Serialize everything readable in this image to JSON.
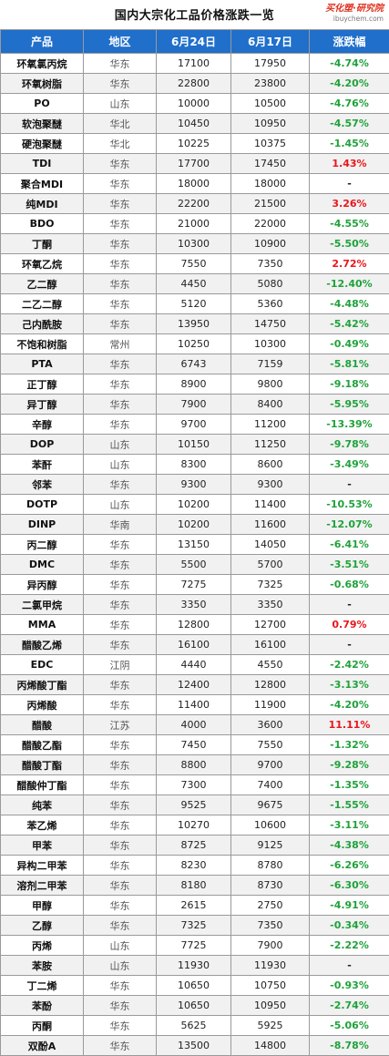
{
  "title": "国内大宗化工品价格涨跌一览",
  "logo": {
    "brand": "买化塑·研究院",
    "site": "ibuychem.com"
  },
  "colors": {
    "header_bg": "#1f6fcb",
    "up": "#e8161c",
    "down": "#1fa23a"
  },
  "columns": [
    "产品",
    "地区",
    "6月24日",
    "6月17日",
    "涨跌幅"
  ],
  "rows": [
    {
      "name": "环氧氯丙烷",
      "region": "华东",
      "d1": "17100",
      "d2": "17950",
      "change": "-4.74%",
      "dir": "down"
    },
    {
      "name": "环氧树脂",
      "region": "华东",
      "d1": "22800",
      "d2": "23800",
      "change": "-4.20%",
      "dir": "down"
    },
    {
      "name": "PO",
      "region": "山东",
      "d1": "10000",
      "d2": "10500",
      "change": "-4.76%",
      "dir": "down"
    },
    {
      "name": "软泡聚醚",
      "region": "华北",
      "d1": "10450",
      "d2": "10950",
      "change": "-4.57%",
      "dir": "down"
    },
    {
      "name": "硬泡聚醚",
      "region": "华北",
      "d1": "10225",
      "d2": "10375",
      "change": "-1.45%",
      "dir": "down"
    },
    {
      "name": "TDI",
      "region": "华东",
      "d1": "17700",
      "d2": "17450",
      "change": "1.43%",
      "dir": "up"
    },
    {
      "name": "聚合MDI",
      "region": "华东",
      "d1": "18000",
      "d2": "18000",
      "change": "-",
      "dir": "flat"
    },
    {
      "name": "纯MDI",
      "region": "华东",
      "d1": "22200",
      "d2": "21500",
      "change": "3.26%",
      "dir": "up"
    },
    {
      "name": "BDO",
      "region": "华东",
      "d1": "21000",
      "d2": "22000",
      "change": "-4.55%",
      "dir": "down"
    },
    {
      "name": "丁酮",
      "region": "华东",
      "d1": "10300",
      "d2": "10900",
      "change": "-5.50%",
      "dir": "down"
    },
    {
      "name": "环氧乙烷",
      "region": "华东",
      "d1": "7550",
      "d2": "7350",
      "change": "2.72%",
      "dir": "up"
    },
    {
      "name": "乙二醇",
      "region": "华东",
      "d1": "4450",
      "d2": "5080",
      "change": "-12.40%",
      "dir": "down"
    },
    {
      "name": "二乙二醇",
      "region": "华东",
      "d1": "5120",
      "d2": "5360",
      "change": "-4.48%",
      "dir": "down"
    },
    {
      "name": "己内酰胺",
      "region": "华东",
      "d1": "13950",
      "d2": "14750",
      "change": "-5.42%",
      "dir": "down"
    },
    {
      "name": "不饱和树脂",
      "region": "常州",
      "d1": "10250",
      "d2": "10300",
      "change": "-0.49%",
      "dir": "down"
    },
    {
      "name": "PTA",
      "region": "华东",
      "d1": "6743",
      "d2": "7159",
      "change": "-5.81%",
      "dir": "down"
    },
    {
      "name": "正丁醇",
      "region": "华东",
      "d1": "8900",
      "d2": "9800",
      "change": "-9.18%",
      "dir": "down"
    },
    {
      "name": "异丁醇",
      "region": "华东",
      "d1": "7900",
      "d2": "8400",
      "change": "-5.95%",
      "dir": "down"
    },
    {
      "name": "辛醇",
      "region": "华东",
      "d1": "9700",
      "d2": "11200",
      "change": "-13.39%",
      "dir": "down"
    },
    {
      "name": "DOP",
      "region": "山东",
      "d1": "10150",
      "d2": "11250",
      "change": "-9.78%",
      "dir": "down"
    },
    {
      "name": "苯酐",
      "region": "山东",
      "d1": "8300",
      "d2": "8600",
      "change": "-3.49%",
      "dir": "down"
    },
    {
      "name": "邻苯",
      "region": "华东",
      "d1": "9300",
      "d2": "9300",
      "change": "-",
      "dir": "flat"
    },
    {
      "name": "DOTP",
      "region": "山东",
      "d1": "10200",
      "d2": "11400",
      "change": "-10.53%",
      "dir": "down"
    },
    {
      "name": "DINP",
      "region": "华南",
      "d1": "10200",
      "d2": "11600",
      "change": "-12.07%",
      "dir": "down"
    },
    {
      "name": "丙二醇",
      "region": "华东",
      "d1": "13150",
      "d2": "14050",
      "change": "-6.41%",
      "dir": "down"
    },
    {
      "name": "DMC",
      "region": "华东",
      "d1": "5500",
      "d2": "5700",
      "change": "-3.51%",
      "dir": "down"
    },
    {
      "name": "异丙醇",
      "region": "华东",
      "d1": "7275",
      "d2": "7325",
      "change": "-0.68%",
      "dir": "down"
    },
    {
      "name": "二氯甲烷",
      "region": "华东",
      "d1": "3350",
      "d2": "3350",
      "change": "-",
      "dir": "flat"
    },
    {
      "name": "MMA",
      "region": "华东",
      "d1": "12800",
      "d2": "12700",
      "change": "0.79%",
      "dir": "up"
    },
    {
      "name": "醋酸乙烯",
      "region": "华东",
      "d1": "16100",
      "d2": "16100",
      "change": "-",
      "dir": "flat"
    },
    {
      "name": "EDC",
      "region": "江阴",
      "d1": "4440",
      "d2": "4550",
      "change": "-2.42%",
      "dir": "down"
    },
    {
      "name": "丙烯酸丁酯",
      "region": "华东",
      "d1": "12400",
      "d2": "12800",
      "change": "-3.13%",
      "dir": "down"
    },
    {
      "name": "丙烯酸",
      "region": "华东",
      "d1": "11400",
      "d2": "11900",
      "change": "-4.20%",
      "dir": "down"
    },
    {
      "name": "醋酸",
      "region": "江苏",
      "d1": "4000",
      "d2": "3600",
      "change": "11.11%",
      "dir": "up"
    },
    {
      "name": "醋酸乙酯",
      "region": "华东",
      "d1": "7450",
      "d2": "7550",
      "change": "-1.32%",
      "dir": "down"
    },
    {
      "name": "醋酸丁酯",
      "region": "华东",
      "d1": "8800",
      "d2": "9700",
      "change": "-9.28%",
      "dir": "down"
    },
    {
      "name": "醋酸仲丁酯",
      "region": "华东",
      "d1": "7300",
      "d2": "7400",
      "change": "-1.35%",
      "dir": "down"
    },
    {
      "name": "纯苯",
      "region": "华东",
      "d1": "9525",
      "d2": "9675",
      "change": "-1.55%",
      "dir": "down"
    },
    {
      "name": "苯乙烯",
      "region": "华东",
      "d1": "10270",
      "d2": "10600",
      "change": "-3.11%",
      "dir": "down"
    },
    {
      "name": "甲苯",
      "region": "华东",
      "d1": "8725",
      "d2": "9125",
      "change": "-4.38%",
      "dir": "down"
    },
    {
      "name": "异构二甲苯",
      "region": "华东",
      "d1": "8230",
      "d2": "8780",
      "change": "-6.26%",
      "dir": "down"
    },
    {
      "name": "溶剂二甲苯",
      "region": "华东",
      "d1": "8180",
      "d2": "8730",
      "change": "-6.30%",
      "dir": "down"
    },
    {
      "name": "甲醇",
      "region": "华东",
      "d1": "2615",
      "d2": "2750",
      "change": "-4.91%",
      "dir": "down"
    },
    {
      "name": "乙醇",
      "region": "华东",
      "d1": "7325",
      "d2": "7350",
      "change": "-0.34%",
      "dir": "down"
    },
    {
      "name": "丙烯",
      "region": "山东",
      "d1": "7725",
      "d2": "7900",
      "change": "-2.22%",
      "dir": "down"
    },
    {
      "name": "苯胺",
      "region": "山东",
      "d1": "11930",
      "d2": "11930",
      "change": "-",
      "dir": "flat"
    },
    {
      "name": "丁二烯",
      "region": "华东",
      "d1": "10650",
      "d2": "10750",
      "change": "-0.93%",
      "dir": "down"
    },
    {
      "name": "苯酚",
      "region": "华东",
      "d1": "10650",
      "d2": "10950",
      "change": "-2.74%",
      "dir": "down"
    },
    {
      "name": "丙酮",
      "region": "华东",
      "d1": "5625",
      "d2": "5925",
      "change": "-5.06%",
      "dir": "down"
    },
    {
      "name": "双酚A",
      "region": "华东",
      "d1": "13500",
      "d2": "14800",
      "change": "-8.78%",
      "dir": "down"
    }
  ]
}
